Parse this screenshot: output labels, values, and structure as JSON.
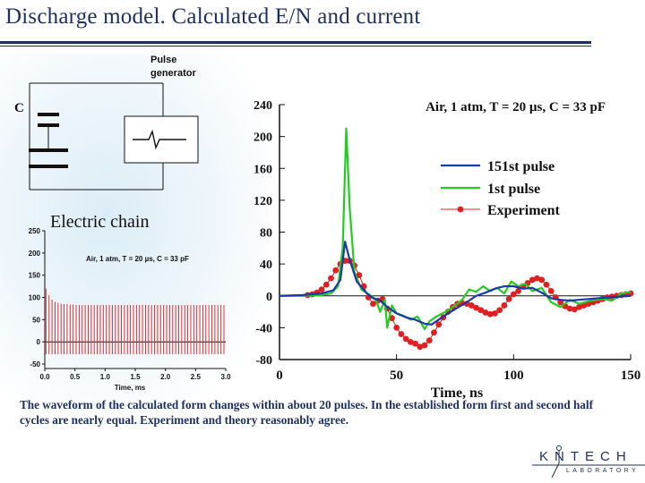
{
  "slide": {
    "title": "Discharge model. Calculated E/N and current",
    "caption": "The waveform of the calculated form changes within about 20 pulses. In the established form first and second half cycles are nearly equal. Experiment and theory reasonably agree."
  },
  "circuit": {
    "pulse_generator_label": [
      "Pulse",
      "generator"
    ],
    "capacitor_label": "C",
    "electric_chain_label": "Electric chain"
  },
  "logo": {
    "word": "KNTECH",
    "subtitle": "LABORATORY",
    "color": "#1d2f5e"
  },
  "colors": {
    "title": "#1d2f5e",
    "series_151": "#1a3aa8",
    "series_1": "#22cc22",
    "experiment": "#e02020"
  },
  "chart_data": [
    {
      "type": "line",
      "title": "Air, 1 atm, T = 20 µs, C = 33 pF",
      "xlabel": "Time, ns",
      "ylabel": "",
      "xlim": [
        0,
        150
      ],
      "ylim": [
        -80,
        240
      ],
      "xticks": [
        0,
        50,
        100,
        150
      ],
      "yticks": [
        -80,
        -40,
        0,
        40,
        80,
        120,
        160,
        200,
        240
      ],
      "legend_position": "top-right",
      "series": [
        {
          "name": "151st pulse",
          "color": "#1a3aa8",
          "x": [
            0,
            10,
            18,
            23,
            26,
            28,
            30,
            33,
            37,
            40,
            43,
            46,
            50,
            54,
            58,
            62,
            65,
            68,
            72,
            76,
            80,
            84,
            88,
            92,
            96,
            100,
            104,
            108,
            112,
            116,
            120,
            124,
            128,
            132,
            136,
            140,
            145,
            150
          ],
          "y": [
            0,
            1,
            3,
            7,
            20,
            68,
            45,
            18,
            4,
            -3,
            -6,
            -14,
            -22,
            -27,
            -30,
            -35,
            -36,
            -30,
            -22,
            -15,
            -8,
            0,
            4,
            9,
            12,
            12,
            9,
            10,
            4,
            -3,
            -5,
            -6,
            -5,
            -4,
            -3,
            -2,
            -1,
            0
          ]
        },
        {
          "name": "1st pulse",
          "color": "#22cc22",
          "x": [
            0,
            10,
            18,
            22,
            25,
            27,
            28.5,
            30,
            32,
            35,
            38,
            41,
            43,
            45,
            46,
            48,
            50,
            53,
            56,
            59,
            62,
            64,
            67,
            71,
            75,
            78,
            81,
            84,
            87,
            90,
            93,
            96,
            99,
            102,
            105,
            108,
            112,
            116,
            120,
            124,
            128,
            133,
            138,
            142,
            146,
            150
          ],
          "y": [
            0,
            0,
            1,
            3,
            12,
            60,
            210,
            110,
            30,
            8,
            2,
            -4,
            -20,
            -5,
            -40,
            -12,
            -22,
            -25,
            -30,
            -26,
            -42,
            -32,
            -26,
            -20,
            -12,
            -5,
            8,
            5,
            12,
            6,
            10,
            3,
            18,
            12,
            15,
            6,
            10,
            -8,
            -14,
            -5,
            -10,
            -6,
            -4,
            -6,
            3,
            5
          ]
        },
        {
          "name": "Experiment",
          "color": "#e02020",
          "x": [
            12,
            14,
            16,
            18,
            20,
            22,
            24,
            26,
            28,
            30,
            32,
            34,
            36,
            38,
            40,
            42,
            44,
            46,
            48,
            50,
            52,
            54,
            56,
            58,
            60,
            62,
            64,
            66,
            68,
            70,
            72,
            74,
            76,
            78,
            80,
            82,
            84,
            86,
            88,
            90,
            92,
            94,
            96,
            98,
            100,
            102,
            104,
            106,
            108,
            110,
            112,
            114,
            116,
            118,
            120,
            122,
            124,
            126,
            128,
            130,
            132,
            134,
            136,
            138,
            140,
            142,
            144,
            146,
            148,
            150
          ],
          "y": [
            1,
            2,
            4,
            8,
            14,
            22,
            32,
            40,
            44,
            44,
            38,
            26,
            12,
            -2,
            -10,
            -6,
            -4,
            -16,
            -28,
            -40,
            -48,
            -54,
            -58,
            -60,
            -64,
            -62,
            -56,
            -46,
            -36,
            -27,
            -20,
            -14,
            -10,
            -9,
            -10,
            -12,
            -15,
            -18,
            -21,
            -23,
            -22,
            -18,
            -12,
            -4,
            2,
            6,
            12,
            16,
            20,
            22,
            20,
            14,
            6,
            -2,
            -8,
            -13,
            -16,
            -17,
            -14,
            -12,
            -10,
            -8,
            -6,
            -4,
            -2,
            -1,
            0,
            1,
            2,
            3
          ]
        }
      ]
    },
    {
      "type": "line",
      "title": "Air, 1 atm, T = 20 µs, C = 33 pF",
      "xlabel": "Time, ms",
      "ylabel": "",
      "xlim": [
        0,
        3.0
      ],
      "ylim": [
        -60,
        250
      ],
      "xticks": [
        0.0,
        0.5,
        1.0,
        1.5,
        2.0,
        2.5,
        3.0
      ],
      "yticks": [
        -50,
        0,
        50,
        100,
        150,
        200,
        250
      ],
      "series": [
        {
          "name": "",
          "color": "#e02020",
          "pulse_period_ms": 0.05,
          "pulse_peaks": [
            120,
            105,
            95,
            90,
            88,
            86,
            85,
            85,
            84,
            84
          ],
          "steady_peak": 83,
          "negative_dip": -28
        }
      ]
    }
  ]
}
